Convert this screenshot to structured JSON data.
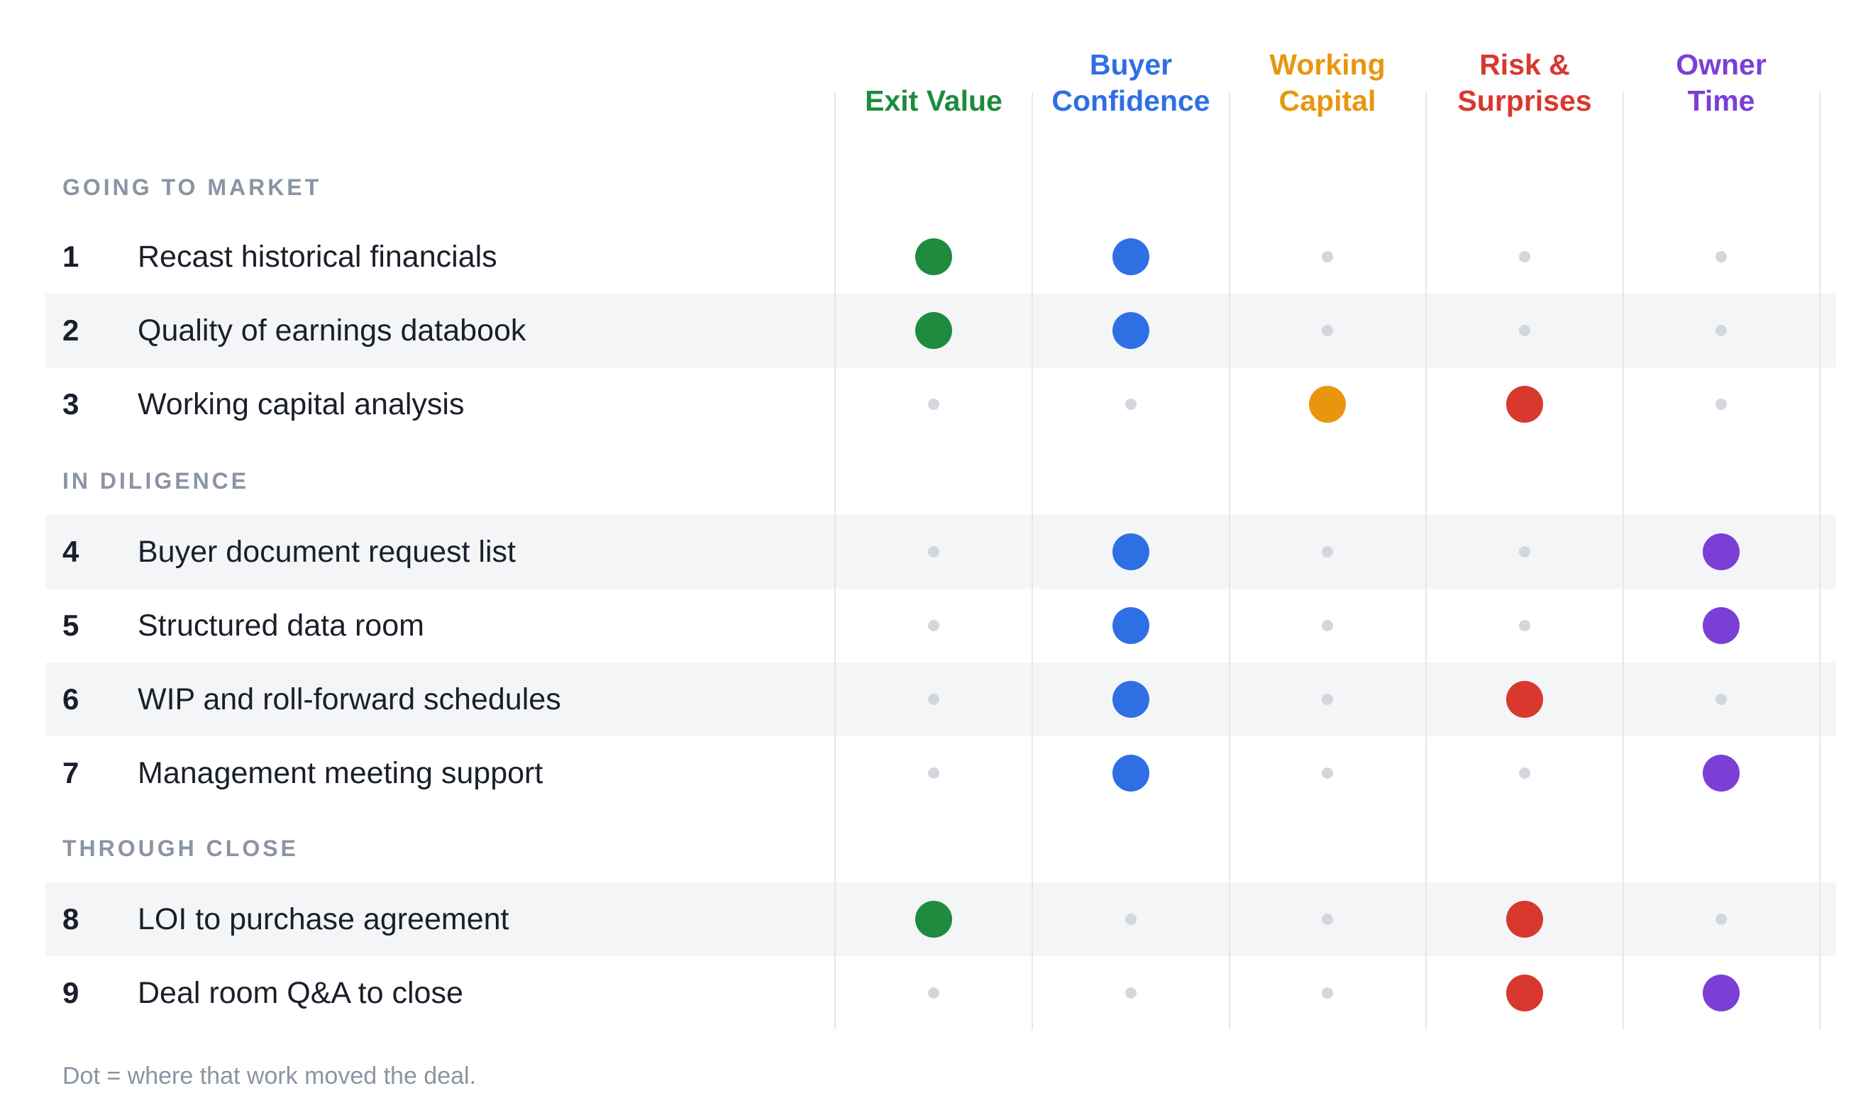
{
  "columns": [
    {
      "key": "exit_value",
      "lines": [
        "Exit Value"
      ],
      "color": "#1e8b3e"
    },
    {
      "key": "buyer_confidence",
      "lines": [
        "Buyer",
        "Confidence"
      ],
      "color": "#2f6fe4"
    },
    {
      "key": "working_capital",
      "lines": [
        "Working",
        "Capital"
      ],
      "color": "#e8960e"
    },
    {
      "key": "risk_surprises",
      "lines": [
        "Risk &",
        "Surprises"
      ],
      "color": "#d8382e"
    },
    {
      "key": "owner_time",
      "lines": [
        "Owner",
        "Time"
      ],
      "color": "#7b3fd6"
    }
  ],
  "sections": [
    {
      "label": "GOING TO MARKET",
      "rows": [
        {
          "num": "1",
          "label": "Recast historical financials",
          "marks": [
            1,
            1,
            0,
            0,
            0
          ]
        },
        {
          "num": "2",
          "label": "Quality of earnings databook",
          "marks": [
            1,
            1,
            0,
            0,
            0
          ]
        },
        {
          "num": "3",
          "label": "Working capital analysis",
          "marks": [
            0,
            0,
            1,
            1,
            0
          ]
        }
      ]
    },
    {
      "label": "IN DILIGENCE",
      "rows": [
        {
          "num": "4",
          "label": "Buyer document request list",
          "marks": [
            0,
            1,
            0,
            0,
            1
          ]
        },
        {
          "num": "5",
          "label": "Structured data room",
          "marks": [
            0,
            1,
            0,
            0,
            1
          ]
        },
        {
          "num": "6",
          "label": "WIP and roll-forward schedules",
          "marks": [
            0,
            1,
            0,
            1,
            0
          ]
        },
        {
          "num": "7",
          "label": "Management meeting support",
          "marks": [
            0,
            1,
            0,
            0,
            1
          ]
        }
      ]
    },
    {
      "label": "THROUGH CLOSE",
      "rows": [
        {
          "num": "8",
          "label": "LOI to purchase agreement",
          "marks": [
            1,
            0,
            0,
            1,
            0
          ]
        },
        {
          "num": "9",
          "label": "Deal room Q&A to close",
          "marks": [
            0,
            0,
            0,
            1,
            1
          ]
        }
      ]
    }
  ],
  "caption": "Dot = where that work moved the deal."
}
